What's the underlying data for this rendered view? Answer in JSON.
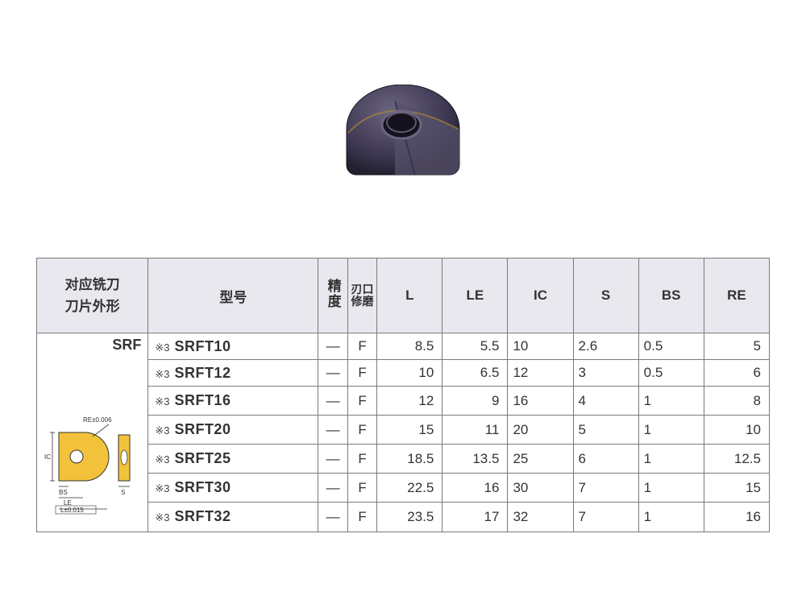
{
  "header": {
    "cutter_shape_line1": "对应铣刀",
    "cutter_shape_line2": "刀片外形",
    "model": "型号",
    "precision": "精度",
    "honing": "刃口修磨",
    "dims": [
      "L",
      "LE",
      "IC",
      "S",
      "BS",
      "RE"
    ]
  },
  "series_label": "SRF",
  "note_prefix": "※3",
  "diagram_labels": {
    "re_tol": "RE±0.006",
    "ic": "IC",
    "bs": "BS",
    "le": "LE",
    "l_tol": "L±0.015",
    "s": "S"
  },
  "rows": [
    {
      "model": "SRFT10",
      "prec": "—",
      "hone": "F",
      "L": "8.5",
      "LE": "5.5",
      "IC": "10",
      "S": "2.6",
      "BS": "0.5",
      "RE": "5"
    },
    {
      "model": "SRFT12",
      "prec": "—",
      "hone": "F",
      "L": "10",
      "LE": "6.5",
      "IC": "12",
      "S": "3",
      "BS": "0.5",
      "RE": "6"
    },
    {
      "model": "SRFT16",
      "prec": "—",
      "hone": "F",
      "L": "12",
      "LE": "9",
      "IC": "16",
      "S": "4",
      "BS": "1",
      "RE": "8"
    },
    {
      "model": "SRFT20",
      "prec": "—",
      "hone": "F",
      "L": "15",
      "LE": "11",
      "IC": "20",
      "S": "5",
      "BS": "1",
      "RE": "10"
    },
    {
      "model": "SRFT25",
      "prec": "—",
      "hone": "F",
      "L": "18.5",
      "LE": "13.5",
      "IC": "25",
      "S": "6",
      "BS": "1",
      "RE": "12.5"
    },
    {
      "model": "SRFT30",
      "prec": "—",
      "hone": "F",
      "L": "22.5",
      "LE": "16",
      "IC": "30",
      "S": "7",
      "BS": "1",
      "RE": "15"
    },
    {
      "model": "SRFT32",
      "prec": "—",
      "hone": "F",
      "L": "23.5",
      "LE": "17",
      "IC": "32",
      "S": "7",
      "BS": "1",
      "RE": "16"
    }
  ],
  "colors": {
    "header_bg": "#e8e8ee",
    "border": "#7a7a7a",
    "insert_body": "#4a4560",
    "insert_dark": "#2e2a3e",
    "insert_gold": "#a87f2e",
    "diagram_fill": "#f3c23b",
    "diagram_stroke": "#333333"
  }
}
